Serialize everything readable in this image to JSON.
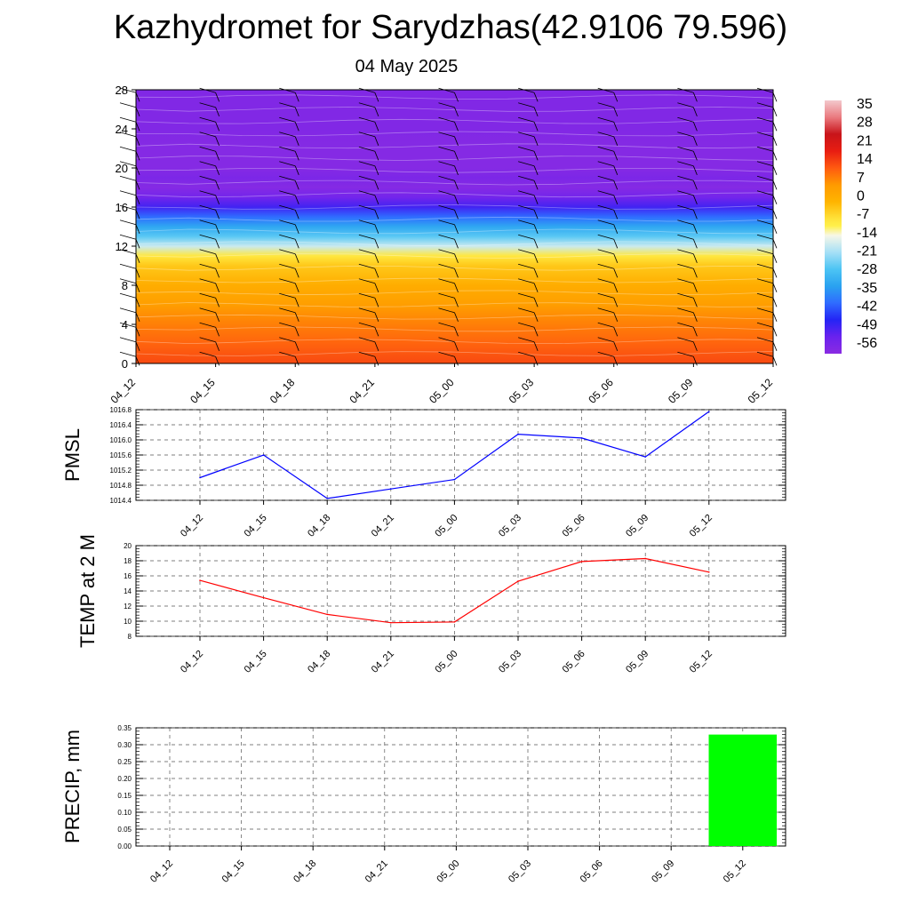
{
  "header": {
    "title": "Kazhydromet for Sarydzhas(42.9106 79.596)",
    "subtitle": "04 May 2025"
  },
  "chart_data": [
    {
      "type": "heatmap",
      "title": "",
      "xlabel": "",
      "ylabel": "",
      "x_ticks": [
        "04_12",
        "04_15",
        "04_18",
        "04_21",
        "05_00",
        "05_03",
        "05_06",
        "05_09",
        "05_12"
      ],
      "y_ticks": [
        0,
        4,
        8,
        12,
        16,
        20,
        24,
        28
      ],
      "ylim": [
        0,
        28
      ],
      "z_profile": [
        {
          "y": 0,
          "value": 16
        },
        {
          "y": 2,
          "value": 13
        },
        {
          "y": 4,
          "value": 10
        },
        {
          "y": 6,
          "value": 6
        },
        {
          "y": 8,
          "value": 2
        },
        {
          "y": 10,
          "value": -3
        },
        {
          "y": 11,
          "value": -8
        },
        {
          "y": 12,
          "value": -18
        },
        {
          "y": 13,
          "value": -27
        },
        {
          "y": 14,
          "value": -34
        },
        {
          "y": 15,
          "value": -42
        },
        {
          "y": 16,
          "value": -52
        },
        {
          "y": 17,
          "value": -58
        },
        {
          "y": 18,
          "value": -62
        },
        {
          "y": 19,
          "value": -60
        },
        {
          "y": 20,
          "value": -62
        },
        {
          "y": 22,
          "value": -62
        },
        {
          "y": 24,
          "value": -61
        },
        {
          "y": 28,
          "value": -61
        }
      ],
      "colorbar": {
        "labels": [
          "35",
          "28",
          "21",
          "14",
          "7",
          "0",
          "-7",
          "-14",
          "-21",
          "-28",
          "-35",
          "-42",
          "-49",
          "-56"
        ],
        "min": -63,
        "max": 42
      },
      "wind_barbs": true
    },
    {
      "type": "line",
      "ylabel": "PMSL",
      "x": [
        "04_12",
        "04_15",
        "04_18",
        "04_21",
        "05_00",
        "05_03",
        "05_06",
        "05_09",
        "05_12"
      ],
      "series": [
        {
          "values": [
            1015.0,
            1015.6,
            1014.45,
            1014.7,
            1014.95,
            1016.15,
            1016.05,
            1015.55,
            1016.75
          ],
          "color": "#0000ff"
        }
      ],
      "ylim": [
        1014.4,
        1016.8
      ],
      "y_ticks": [
        "1014.4",
        "1014.8",
        "1015.2",
        "1015.6",
        "1016.0",
        "1016.4",
        "1016.8"
      ],
      "grid": true
    },
    {
      "type": "line",
      "ylabel": "TEMP at 2 M",
      "x": [
        "04_12",
        "04_15",
        "04_18",
        "04_21",
        "05_00",
        "05_03",
        "05_06",
        "05_09",
        "05_12"
      ],
      "series": [
        {
          "values": [
            15.4,
            13.1,
            10.9,
            9.8,
            9.9,
            15.3,
            17.9,
            18.3,
            16.5
          ],
          "color": "#ff0000"
        }
      ],
      "ylim": [
        8,
        20
      ],
      "y_ticks": [
        "8",
        "10",
        "12",
        "14",
        "16",
        "18",
        "20"
      ],
      "grid": true
    },
    {
      "type": "bar",
      "ylabel": "PRECIP, mm",
      "categories": [
        "04_12",
        "04_15",
        "04_18",
        "04_21",
        "05_00",
        "05_03",
        "05_06",
        "05_09",
        "05_12"
      ],
      "values": [
        0,
        0,
        0,
        0,
        0,
        0,
        0,
        0,
        0.33
      ],
      "color": "#00ff00",
      "ylim": [
        0,
        0.35
      ],
      "y_ticks": [
        "0.00",
        "0.05",
        "0.10",
        "0.15",
        "0.20",
        "0.25",
        "0.30",
        "0.35"
      ],
      "grid": true
    }
  ]
}
